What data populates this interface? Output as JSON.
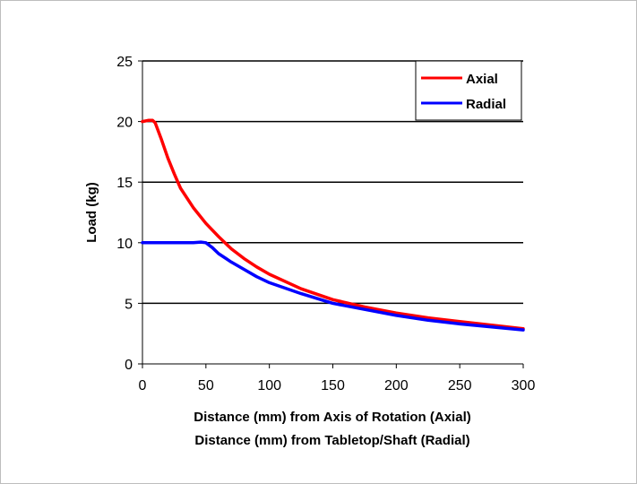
{
  "chart_data": {
    "type": "line",
    "xlabel_lines": [
      "Distance (mm) from Axis of Rotation (Axial)",
      "Distance (mm) from Tabletop/Shaft (Radial)"
    ],
    "ylabel": "Load (kg)",
    "xlim": [
      0,
      300
    ],
    "ylim": [
      0,
      25
    ],
    "x_ticks": [
      0,
      50,
      100,
      150,
      200,
      250,
      300
    ],
    "y_ticks": [
      0,
      5,
      10,
      15,
      20,
      25
    ],
    "grid": "horizontal",
    "legend": "top-right",
    "series": [
      {
        "name": "Axial",
        "color": "#ff0000",
        "points": [
          [
            0,
            20
          ],
          [
            5,
            20.1
          ],
          [
            8,
            20.1
          ],
          [
            10,
            19.9
          ],
          [
            15,
            18.5
          ],
          [
            20,
            17
          ],
          [
            25,
            15.7
          ],
          [
            30,
            14.5
          ],
          [
            40,
            12.9
          ],
          [
            50,
            11.6
          ],
          [
            60,
            10.5
          ],
          [
            70,
            9.5
          ],
          [
            80,
            8.7
          ],
          [
            90,
            8.0
          ],
          [
            100,
            7.4
          ],
          [
            125,
            6.2
          ],
          [
            150,
            5.3
          ],
          [
            175,
            4.7
          ],
          [
            200,
            4.2
          ],
          [
            225,
            3.8
          ],
          [
            250,
            3.5
          ],
          [
            275,
            3.2
          ],
          [
            300,
            2.9
          ]
        ]
      },
      {
        "name": "Radial",
        "color": "#0000ff",
        "points": [
          [
            0,
            10
          ],
          [
            10,
            10
          ],
          [
            20,
            10
          ],
          [
            30,
            10
          ],
          [
            40,
            10
          ],
          [
            46,
            10.05
          ],
          [
            50,
            10
          ],
          [
            55,
            9.6
          ],
          [
            60,
            9.1
          ],
          [
            70,
            8.4
          ],
          [
            80,
            7.8
          ],
          [
            90,
            7.2
          ],
          [
            100,
            6.7
          ],
          [
            125,
            5.8
          ],
          [
            150,
            5.0
          ],
          [
            175,
            4.5
          ],
          [
            200,
            4.0
          ],
          [
            225,
            3.6
          ],
          [
            250,
            3.3
          ],
          [
            275,
            3.05
          ],
          [
            300,
            2.8
          ]
        ]
      }
    ]
  }
}
